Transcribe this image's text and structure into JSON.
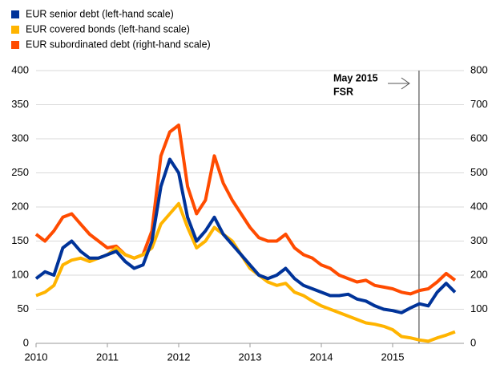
{
  "chart_data": {
    "type": "line",
    "x": [
      2010.0,
      2010.125,
      2010.25,
      2010.375,
      2010.5,
      2010.625,
      2010.75,
      2010.875,
      2011.0,
      2011.125,
      2011.25,
      2011.375,
      2011.5,
      2011.625,
      2011.75,
      2011.875,
      2012.0,
      2012.125,
      2012.25,
      2012.375,
      2012.5,
      2012.625,
      2012.75,
      2012.875,
      2013.0,
      2013.125,
      2013.25,
      2013.375,
      2013.5,
      2013.625,
      2013.75,
      2013.875,
      2014.0,
      2014.125,
      2014.25,
      2014.375,
      2014.5,
      2014.625,
      2014.75,
      2014.875,
      2015.0,
      2015.125,
      2015.25,
      2015.375,
      2015.5,
      2015.625,
      2015.75,
      2015.875
    ],
    "series": [
      {
        "name": "EUR senior debt (left-hand scale)",
        "color": "#003399",
        "axis": "y",
        "values": [
          95,
          105,
          100,
          140,
          150,
          135,
          125,
          125,
          130,
          135,
          120,
          110,
          115,
          150,
          230,
          270,
          250,
          185,
          150,
          165,
          185,
          160,
          145,
          130,
          115,
          100,
          95,
          100,
          110,
          95,
          85,
          80,
          75,
          70,
          70,
          72,
          65,
          62,
          55,
          50,
          48,
          45,
          52,
          58,
          55,
          75,
          88,
          75
        ]
      },
      {
        "name": "EUR covered bonds (left-hand scale)",
        "color": "#ffb400",
        "axis": "y",
        "values": [
          70,
          75,
          85,
          115,
          122,
          125,
          120,
          125,
          130,
          140,
          130,
          125,
          130,
          140,
          175,
          190,
          205,
          170,
          140,
          150,
          170,
          160,
          150,
          130,
          110,
          100,
          90,
          85,
          88,
          75,
          70,
          62,
          55,
          50,
          45,
          40,
          35,
          30,
          28,
          25,
          20,
          10,
          8,
          5,
          3,
          8,
          12,
          17
        ]
      },
      {
        "name": "EUR subordinated debt (right-hand scale)",
        "color": "#ff4b00",
        "axis": "y2",
        "values": [
          320,
          300,
          330,
          370,
          380,
          350,
          320,
          300,
          280,
          285,
          260,
          250,
          260,
          330,
          550,
          620,
          640,
          460,
          380,
          420,
          550,
          470,
          420,
          380,
          340,
          310,
          300,
          300,
          320,
          280,
          260,
          250,
          230,
          220,
          200,
          190,
          180,
          185,
          170,
          165,
          160,
          150,
          145,
          155,
          160,
          180,
          205,
          185
        ]
      }
    ],
    "xlim": [
      2010,
      2016
    ],
    "xticks": [
      2010,
      2011,
      2012,
      2013,
      2014,
      2015
    ],
    "ylim": [
      0,
      400
    ],
    "yticks": [
      0,
      50,
      100,
      150,
      200,
      250,
      300,
      350,
      400
    ],
    "y2lim": [
      0,
      800
    ],
    "y2ticks": [
      0,
      100,
      200,
      300,
      400,
      500,
      600,
      700,
      800
    ],
    "grid": true,
    "annotation": {
      "text": [
        "May 2015",
        "FSR"
      ],
      "x": 2015.37
    }
  }
}
